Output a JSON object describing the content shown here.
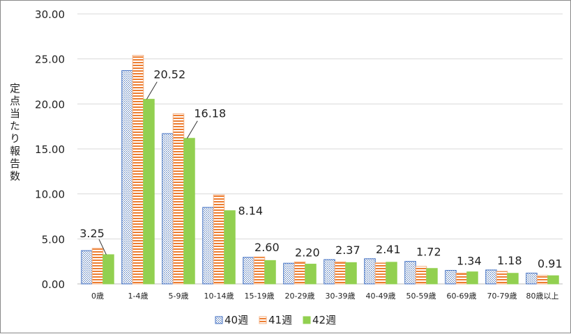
{
  "chart_data": {
    "type": "bar",
    "ylabel": "定点当たり報告数",
    "ylim": [
      0,
      30
    ],
    "yticks": [
      "0.00",
      "5.00",
      "10.00",
      "15.00",
      "20.00",
      "25.00",
      "30.00"
    ],
    "grid": true,
    "legend_position": "bottom",
    "categories": [
      "0歳",
      "1-4歳",
      "5-9歳",
      "10-14歳",
      "15-19歳",
      "20-29歳",
      "30-39歳",
      "40-49歳",
      "50-59歳",
      "60-69歳",
      "70-79歳",
      "80歳以上"
    ],
    "series": [
      {
        "name": "40週",
        "color": "#4472c4",
        "values": [
          3.7,
          23.7,
          16.7,
          8.5,
          2.95,
          2.3,
          2.7,
          2.8,
          2.5,
          1.5,
          1.55,
          1.2
        ]
      },
      {
        "name": "41週",
        "color": "#ed7d31",
        "values": [
          3.95,
          25.4,
          18.9,
          9.9,
          3.0,
          2.45,
          2.45,
          2.35,
          1.95,
          1.2,
          1.4,
          0.95
        ]
      },
      {
        "name": "42週",
        "color": "#92d050",
        "values": [
          3.25,
          20.52,
          16.18,
          8.14,
          2.6,
          2.2,
          2.37,
          2.41,
          1.72,
          1.34,
          1.18,
          0.91
        ]
      }
    ],
    "data_labels": [
      "3.25",
      "20.52",
      "16.18",
      "8.14",
      "2.60",
      "2.20",
      "2.37",
      "2.41",
      "1.72",
      "1.34",
      "1.18",
      "0.91"
    ]
  }
}
